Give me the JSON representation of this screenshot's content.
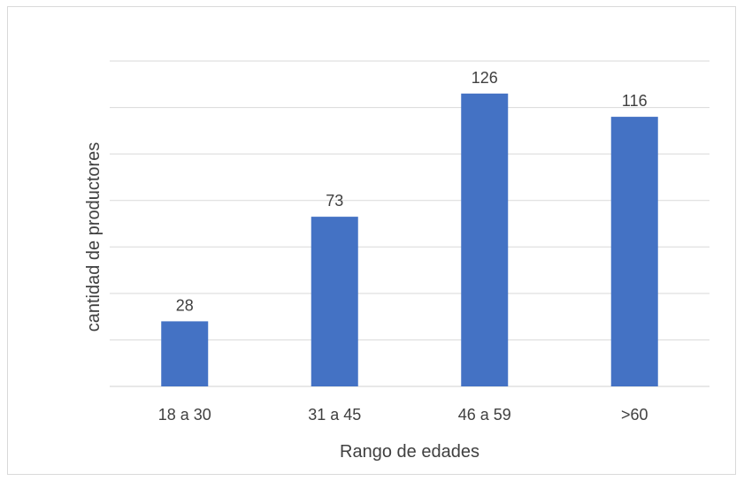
{
  "chart_data": {
    "type": "bar",
    "title": "",
    "categories": [
      "18 a 30",
      "31 a 45",
      "46 a 59",
      ">60"
    ],
    "values": [
      28,
      73,
      126,
      116
    ],
    "xlabel": "Rango de edades",
    "ylabel": "cantidad de productores",
    "ylim": [
      0,
      140
    ],
    "y_tick_step": 20,
    "y_tick_labels_visible": false,
    "data_labels": [
      "28",
      "73",
      "126",
      "116"
    ],
    "grid": true,
    "legend": "none",
    "bar_color": "#4472c4",
    "grid_color": "#d9d9d9",
    "text_color": "#404040"
  }
}
